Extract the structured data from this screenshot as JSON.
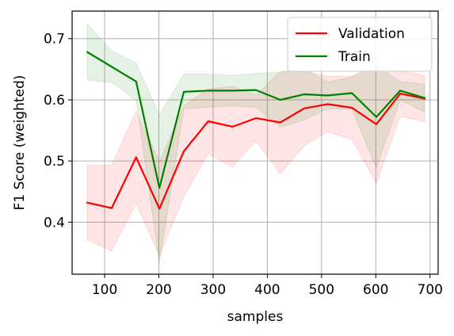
{
  "chart_data": {
    "type": "line",
    "xlabel": "samples",
    "ylabel": "F1 Score (weighted)",
    "xlim": [
      40,
      715
    ],
    "ylim": [
      0.315,
      0.745
    ],
    "xticks": [
      100,
      200,
      300,
      400,
      500,
      600,
      700
    ],
    "yticks": [
      0.4,
      0.5,
      0.6,
      0.7
    ],
    "grid": true,
    "legend_position": "top-right",
    "x": [
      68,
      113,
      158,
      201,
      246,
      291,
      336,
      379,
      424,
      468,
      511,
      556,
      601,
      645,
      690
    ],
    "series": [
      {
        "name": "Validation",
        "color": "#ff0000",
        "band_color": "#ff0000",
        "values": [
          0.432,
          0.423,
          0.506,
          0.422,
          0.516,
          0.565,
          0.556,
          0.57,
          0.563,
          0.586,
          0.593,
          0.587,
          0.56,
          0.61,
          0.602
        ],
        "lower": [
          0.371,
          0.353,
          0.431,
          0.345,
          0.442,
          0.512,
          0.49,
          0.533,
          0.479,
          0.525,
          0.548,
          0.535,
          0.464,
          0.573,
          0.564
        ],
        "upper": [
          0.493,
          0.493,
          0.581,
          0.499,
          0.59,
          0.618,
          0.622,
          0.607,
          0.647,
          0.647,
          0.638,
          0.639,
          0.656,
          0.647,
          0.64
        ]
      },
      {
        "name": "Train",
        "color": "#008000",
        "band_color": "#008000",
        "values": [
          0.678,
          0.654,
          0.63,
          0.456,
          0.613,
          0.615,
          0.615,
          0.616,
          0.6,
          0.609,
          0.607,
          0.611,
          0.572,
          0.615,
          0.603
        ],
        "lower": [
          0.632,
          0.628,
          0.6,
          0.333,
          0.585,
          0.588,
          0.59,
          0.588,
          0.555,
          0.567,
          0.585,
          0.585,
          0.488,
          0.6,
          0.58
        ],
        "upper": [
          0.724,
          0.68,
          0.66,
          0.575,
          0.642,
          0.642,
          0.64,
          0.643,
          0.645,
          0.65,
          0.629,
          0.637,
          0.656,
          0.63,
          0.626
        ]
      }
    ]
  }
}
